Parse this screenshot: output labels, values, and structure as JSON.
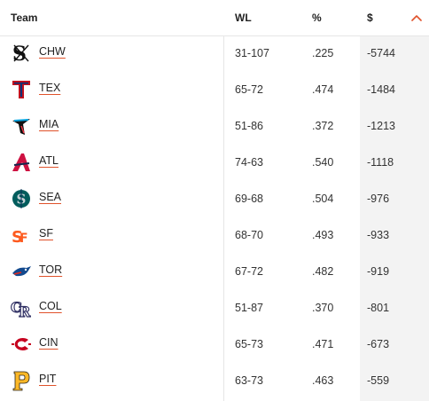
{
  "header": {
    "team": "Team",
    "wl": "WL",
    "pct": "%",
    "money": "$",
    "sort_icon": "chevron-up-icon",
    "accent": "#e0522b"
  },
  "rows": [
    {
      "abbr": "CHW",
      "wl": "31-107",
      "pct": ".225",
      "money": "-5744",
      "logo": "white-sox-logo"
    },
    {
      "abbr": "TEX",
      "wl": "65-72",
      "pct": ".474",
      "money": "-1484",
      "logo": "rangers-logo"
    },
    {
      "abbr": "MIA",
      "wl": "51-86",
      "pct": ".372",
      "money": "-1213",
      "logo": "marlins-logo"
    },
    {
      "abbr": "ATL",
      "wl": "74-63",
      "pct": ".540",
      "money": "-1118",
      "logo": "braves-logo"
    },
    {
      "abbr": "SEA",
      "wl": "69-68",
      "pct": ".504",
      "money": "-976",
      "logo": "mariners-logo"
    },
    {
      "abbr": "SF",
      "wl": "68-70",
      "pct": ".493",
      "money": "-933",
      "logo": "giants-logo"
    },
    {
      "abbr": "TOR",
      "wl": "67-72",
      "pct": ".482",
      "money": "-919",
      "logo": "blue-jays-logo"
    },
    {
      "abbr": "COL",
      "wl": "51-87",
      "pct": ".370",
      "money": "-801",
      "logo": "rockies-logo"
    },
    {
      "abbr": "CIN",
      "wl": "65-73",
      "pct": ".471",
      "money": "-673",
      "logo": "reds-logo"
    },
    {
      "abbr": "PIT",
      "wl": "63-73",
      "pct": ".463",
      "money": "-559",
      "logo": "pirates-logo"
    }
  ]
}
